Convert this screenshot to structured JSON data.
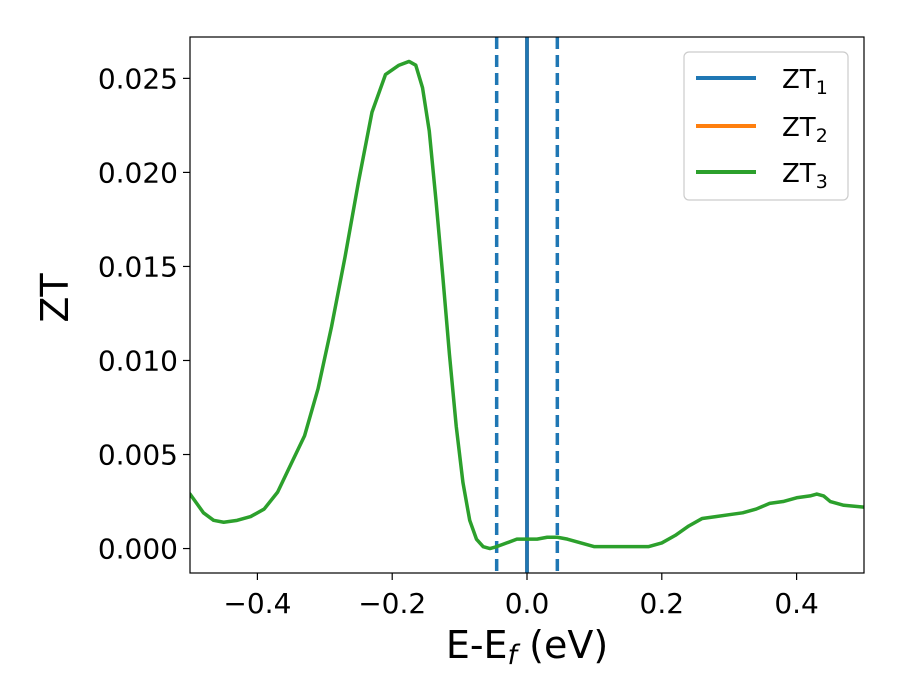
{
  "chart_data": {
    "type": "line",
    "xlabel": {
      "main": "E-E",
      "sub": "f",
      "unit": " (eV)"
    },
    "ylabel": "ZT",
    "xlim": [
      -0.5,
      0.5
    ],
    "ylim": [
      -0.0013,
      0.0272
    ],
    "xticks": [
      -0.4,
      -0.2,
      0.0,
      0.2,
      0.4
    ],
    "xtick_labels": [
      "−0.4",
      "−0.2",
      "0.0",
      "0.2",
      "0.4"
    ],
    "yticks": [
      0.0,
      0.005,
      0.01,
      0.015,
      0.02,
      0.025
    ],
    "ytick_labels": [
      "0.000",
      "0.005",
      "0.010",
      "0.015",
      "0.020",
      "0.025"
    ],
    "grid": false,
    "legend_position": "top-right",
    "series": [
      {
        "name": {
          "main": "ZT",
          "sub": "1"
        },
        "color": "#1f77b4",
        "style": "solid",
        "x": [],
        "y": []
      },
      {
        "name": {
          "main": "ZT",
          "sub": "2"
        },
        "color": "#ff7f0e",
        "style": "solid",
        "x": [],
        "y": []
      },
      {
        "name": {
          "main": "ZT",
          "sub": "3"
        },
        "color": "#2ca02c",
        "style": "solid",
        "x": [
          -0.5,
          -0.48,
          -0.465,
          -0.45,
          -0.43,
          -0.41,
          -0.39,
          -0.37,
          -0.35,
          -0.33,
          -0.31,
          -0.29,
          -0.27,
          -0.25,
          -0.23,
          -0.21,
          -0.19,
          -0.175,
          -0.165,
          -0.155,
          -0.145,
          -0.135,
          -0.125,
          -0.115,
          -0.105,
          -0.095,
          -0.085,
          -0.075,
          -0.065,
          -0.055,
          -0.045,
          -0.03,
          -0.015,
          0.0,
          0.015,
          0.03,
          0.045,
          0.06,
          0.08,
          0.1,
          0.12,
          0.14,
          0.16,
          0.18,
          0.2,
          0.22,
          0.24,
          0.26,
          0.28,
          0.3,
          0.32,
          0.34,
          0.36,
          0.38,
          0.4,
          0.42,
          0.43,
          0.44,
          0.45,
          0.47,
          0.5
        ],
        "y": [
          0.0029,
          0.0019,
          0.0015,
          0.0014,
          0.0015,
          0.0017,
          0.0021,
          0.003,
          0.0045,
          0.006,
          0.0085,
          0.0118,
          0.0155,
          0.0195,
          0.0232,
          0.0252,
          0.0257,
          0.0259,
          0.0257,
          0.0245,
          0.0222,
          0.0185,
          0.0145,
          0.0103,
          0.0065,
          0.0035,
          0.0015,
          0.0005,
          0.0001,
          0.0,
          0.0001,
          0.0003,
          0.0005,
          0.0005,
          0.0005,
          0.0006,
          0.0006,
          0.0005,
          0.0003,
          0.0001,
          0.0001,
          0.0001,
          0.0001,
          0.0001,
          0.0003,
          0.0007,
          0.0012,
          0.0016,
          0.0017,
          0.0018,
          0.0019,
          0.0021,
          0.0024,
          0.0025,
          0.0027,
          0.0028,
          0.0029,
          0.0028,
          0.0025,
          0.0023,
          0.0022
        ]
      }
    ],
    "vlines": [
      {
        "x": -0.045,
        "color": "#1f77b4",
        "style": "dashed"
      },
      {
        "x": 0.0,
        "color": "#000000",
        "style": "solid"
      },
      {
        "x": 0.0,
        "color": "#1f77b4",
        "style": "solid"
      },
      {
        "x": 0.045,
        "color": "#1f77b4",
        "style": "dashed"
      }
    ],
    "colors": {
      "axis": "#000000",
      "background": "#ffffff",
      "legend_border": "#cccccc"
    }
  }
}
